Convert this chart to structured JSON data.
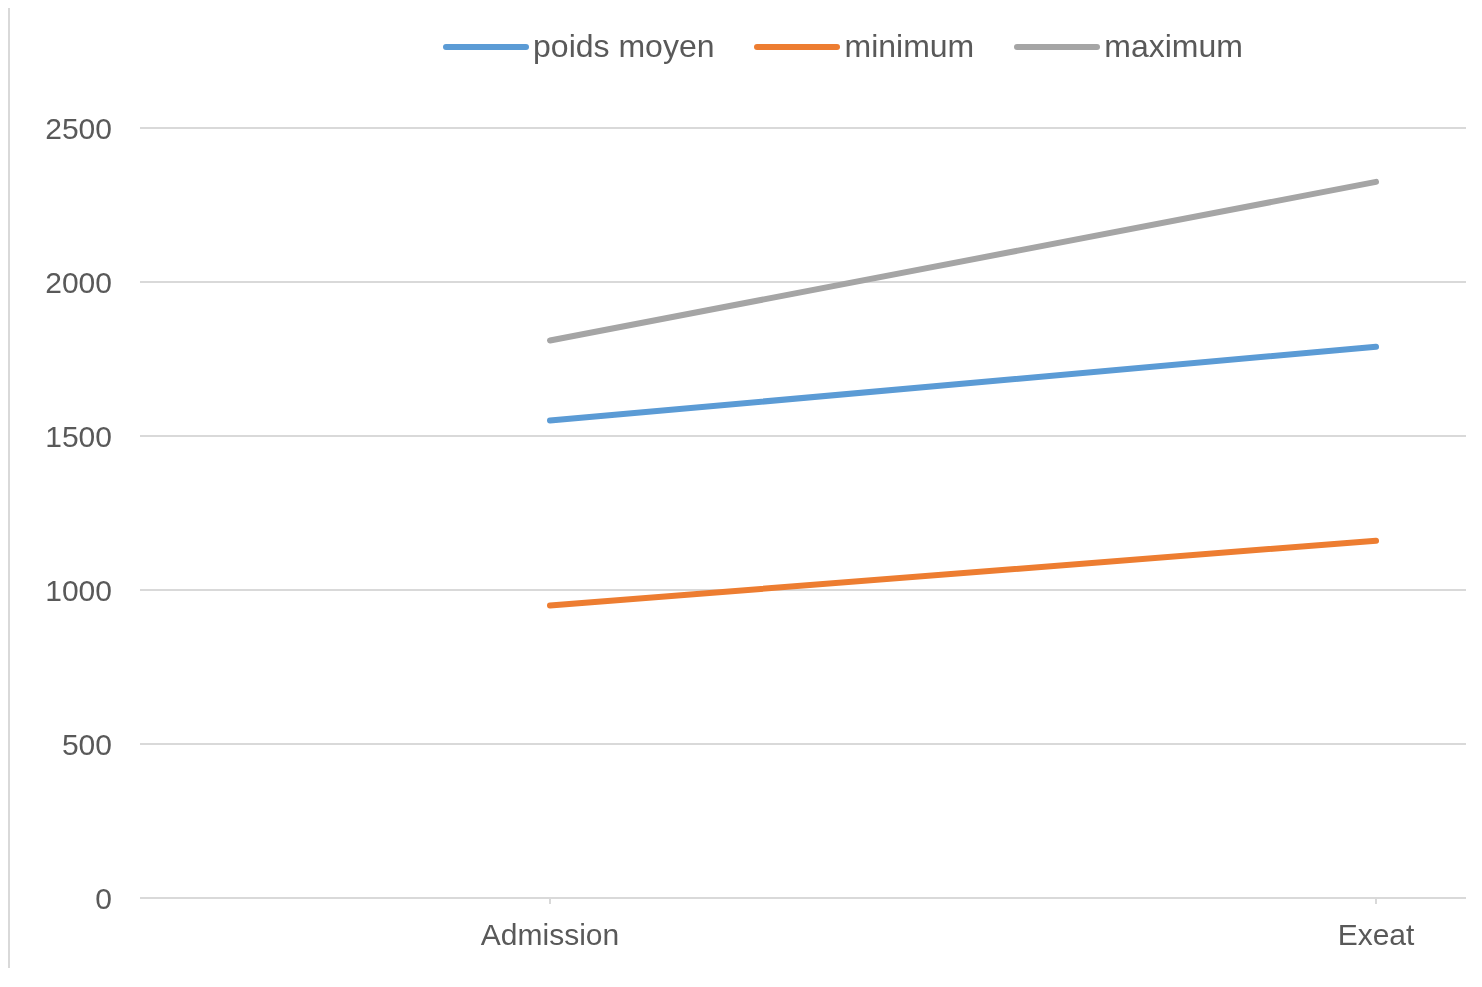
{
  "chart_data": {
    "type": "line",
    "categories": [
      "Admission",
      "Exeat"
    ],
    "series": [
      {
        "name": "poids moyen",
        "color": "#5b9bd5",
        "values": [
          1550,
          1790
        ]
      },
      {
        "name": "minimum",
        "color": "#ed7d31",
        "values": [
          950,
          1160
        ]
      },
      {
        "name": "maximum",
        "color": "#a5a5a5",
        "values": [
          1810,
          2325
        ]
      }
    ],
    "ylim": [
      0,
      2500
    ],
    "yticks": [
      0,
      500,
      1000,
      1500,
      2000,
      2500
    ],
    "grid": "y",
    "legend": "top"
  }
}
